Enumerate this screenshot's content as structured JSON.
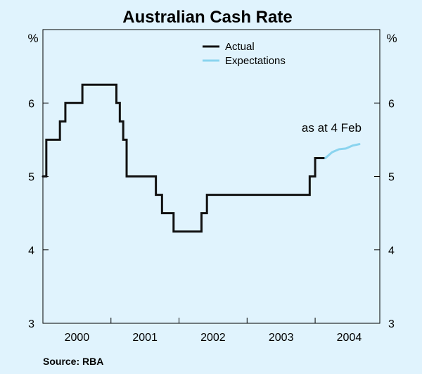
{
  "chart_data": {
    "type": "line",
    "title": "Australian Cash Rate",
    "y_unit_left": "%",
    "y_unit_right": "%",
    "ylim": [
      3,
      7
    ],
    "yticks": [
      3,
      4,
      5,
      6
    ],
    "xlim": [
      1999.5,
      2004.45
    ],
    "xticks": [
      {
        "label": "2000",
        "value": 2000
      },
      {
        "label": "2001",
        "value": 2001
      },
      {
        "label": "2002",
        "value": 2002
      },
      {
        "label": "2003",
        "value": 2003
      },
      {
        "label": "2004",
        "value": 2004
      }
    ],
    "grid": false,
    "legend_position": "top-center",
    "series": [
      {
        "name": "Actual",
        "color": "#111111",
        "step": true,
        "points": [
          [
            1999.5,
            5.0
          ],
          [
            1999.55,
            5.5
          ],
          [
            1999.75,
            5.75
          ],
          [
            1999.83,
            6.0
          ],
          [
            2000.08,
            6.25
          ],
          [
            2000.58,
            6.0
          ],
          [
            2000.63,
            5.75
          ],
          [
            2000.68,
            5.5
          ],
          [
            2000.73,
            5.0
          ],
          [
            2001.16,
            4.75
          ],
          [
            2001.25,
            4.5
          ],
          [
            2001.42,
            4.25
          ],
          [
            2001.83,
            4.5
          ],
          [
            2001.91,
            4.75
          ],
          [
            2003.42,
            5.0
          ],
          [
            2003.5,
            5.25
          ],
          [
            2003.65,
            5.25
          ]
        ]
      },
      {
        "name": "Expectations",
        "color": "#8ad4ef",
        "step": false,
        "points": [
          [
            2003.65,
            5.25
          ],
          [
            2003.75,
            5.33
          ],
          [
            2003.85,
            5.37
          ],
          [
            2003.95,
            5.38
          ],
          [
            2004.05,
            5.42
          ],
          [
            2004.15,
            5.44
          ]
        ]
      }
    ],
    "annotations": [
      {
        "text": "as at 4 Feb",
        "x": 2004.0,
        "y": 5.55
      }
    ]
  },
  "source": "Source: RBA"
}
